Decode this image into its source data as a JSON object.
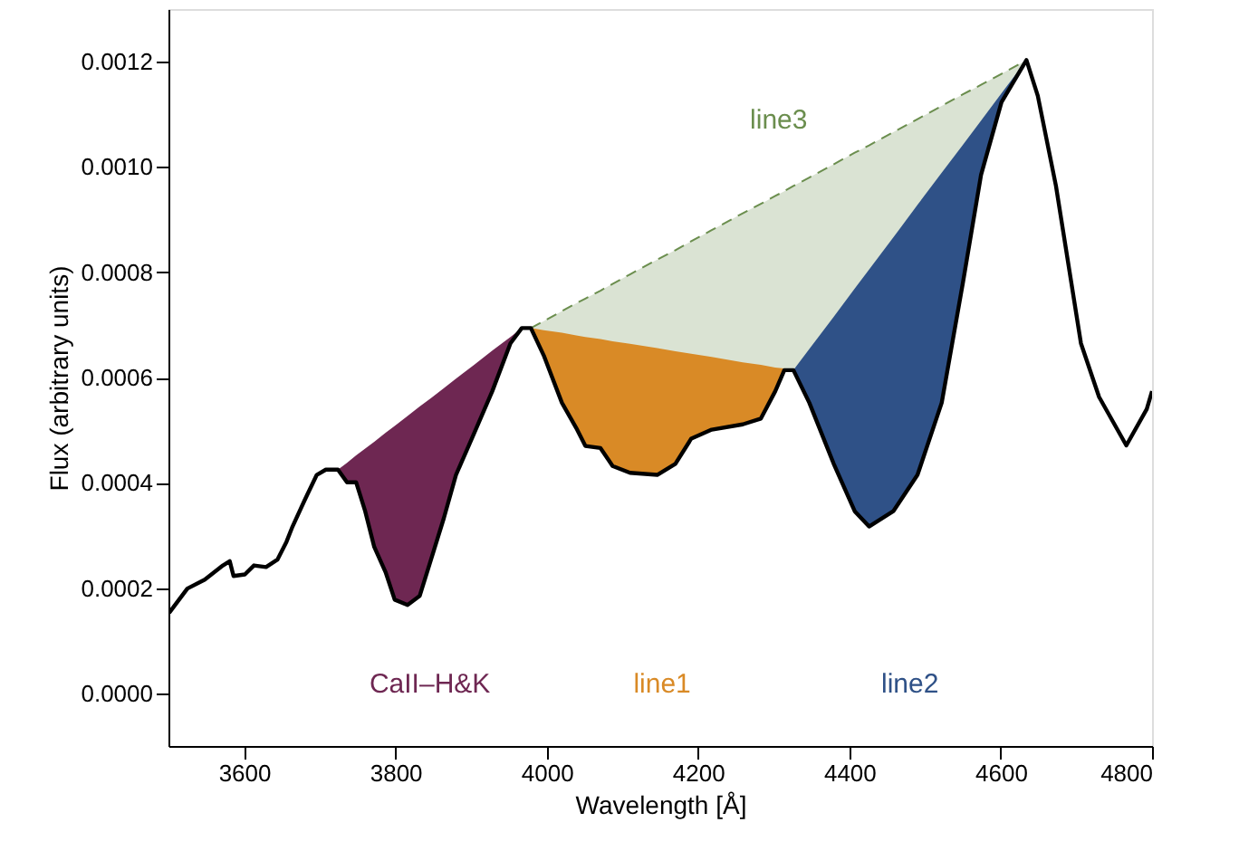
{
  "chart_data": {
    "type": "line",
    "xlabel": "Wavelength [Å]",
    "ylabel": "Flux (arbitrary units)",
    "xlim": [
      3500,
      4800
    ],
    "xticks": [
      {
        "value": 3600,
        "label": "3600"
      },
      {
        "value": 3800,
        "label": "3800"
      },
      {
        "value": 4000,
        "label": "4000"
      },
      {
        "value": 4200,
        "label": "4200"
      },
      {
        "value": 4400,
        "label": "4400"
      },
      {
        "value": 4600,
        "label": "4600"
      },
      {
        "value": 4800,
        "label": "4800"
      }
    ],
    "ylim": [
      -0.0001,
      0.0013
    ],
    "yticks": [
      {
        "value": 0,
        "label": "0.0000"
      },
      {
        "value": 0.0002,
        "label": "0.0002"
      },
      {
        "value": 0.0004,
        "label": "0.0004"
      },
      {
        "value": 0.0006,
        "label": "0.0006"
      },
      {
        "value": 0.0008,
        "label": "0.0008"
      },
      {
        "value": 0.001,
        "label": "0.0010"
      },
      {
        "value": 0.0012,
        "label": "0.0012"
      }
    ],
    "grid": false,
    "series": [
      {
        "type": "area",
        "name": "line3",
        "color": "#6b8e4e",
        "line_style": "dashed",
        "x": [
          3979,
          3996,
          4020,
          4039,
          4051,
          4071,
          4087,
          4110,
          4146,
          4170,
          4191,
          4218,
          4259,
          4283,
          4302,
          4314,
          4326,
          4347,
          4379,
          4407,
          4426,
          4458,
          4490,
          4522,
          4550,
          4574,
          4601,
          4634
        ],
        "values": [
          0.000694,
          0.000707,
          0.000726,
          0.000741,
          0.00075,
          0.000765,
          0.000778,
          0.000796,
          0.000824,
          0.000842,
          0.000859,
          0.00088,
          0.000912,
          0.00093,
          0.000945,
          0.000954,
          0.000964,
          0.00098,
          0.001005,
          0.001027,
          0.001041,
          0.001066,
          0.001091,
          0.001116,
          0.001138,
          0.001156,
          0.001177,
          0.001203
        ]
      },
      {
        "type": "area",
        "name": "CaII–H&K",
        "color": "#6e2752",
        "x": [
          3724,
          3736,
          3748,
          3760,
          3772,
          3787,
          3799,
          3816,
          3832,
          3847,
          3864,
          3880,
          3904,
          3928,
          3952,
          3967
        ],
        "values": [
          0.000425,
          0.000438,
          0.000452,
          0.000465,
          0.000478,
          0.000495,
          0.000508,
          0.000527,
          0.000545,
          0.000561,
          0.00058,
          0.000598,
          0.000624,
          0.000651,
          0.000677,
          0.000694
        ]
      },
      {
        "type": "area",
        "name": "line1",
        "color": "#d98a26",
        "x": [
          3979,
          3996,
          4020,
          4039,
          4051,
          4071,
          4087,
          4110,
          4146,
          4170,
          4191,
          4218,
          4259,
          4283,
          4302,
          4314,
          4326
        ],
        "values": [
          0.000694,
          0.00069,
          0.000685,
          0.00068,
          0.000677,
          0.000673,
          0.000669,
          0.000664,
          0.000656,
          0.00065,
          0.000645,
          0.000639,
          0.000629,
          0.000624,
          0.000619,
          0.000617,
          0.000614
        ]
      },
      {
        "type": "area",
        "name": "line2",
        "color": "#2f5187",
        "x": [
          4326,
          4347,
          4379,
          4407,
          4426,
          4458,
          4490,
          4522,
          4550,
          4574,
          4601,
          4634
        ],
        "values": [
          0.000614,
          0.000654,
          0.000715,
          0.000769,
          0.000805,
          0.000866,
          0.000928,
          0.000989,
          0.001042,
          0.001088,
          0.00114,
          0.001203
        ]
      },
      {
        "color": "#000000",
        "x": [
          3501,
          3525,
          3548,
          3572,
          3581,
          3586,
          3601,
          3613,
          3629,
          3644,
          3656,
          3664,
          3680,
          3696,
          3708,
          3724,
          3736,
          3748,
          3760,
          3772,
          3787,
          3799,
          3816,
          3832,
          3847,
          3864,
          3880,
          3904,
          3928,
          3952,
          3967,
          3979,
          3996,
          4020,
          4039,
          4051,
          4071,
          4087,
          4110,
          4146,
          4170,
          4191,
          4218,
          4259,
          4283,
          4302,
          4314,
          4326,
          4347,
          4379,
          4407,
          4426,
          4458,
          4490,
          4522,
          4550,
          4574,
          4601,
          4634,
          4649,
          4673,
          4706,
          4730,
          4766,
          4793,
          4800
        ],
        "values": [
          0.000153,
          0.000199,
          0.000216,
          0.000243,
          0.000251,
          0.000223,
          0.000226,
          0.000243,
          0.00024,
          0.000254,
          0.000288,
          0.000317,
          0.000367,
          0.000415,
          0.000425,
          0.000425,
          0.000401,
          0.000401,
          0.000346,
          0.000278,
          0.00023,
          0.000178,
          0.000168,
          0.000185,
          0.000254,
          0.000333,
          0.000415,
          0.000494,
          0.000574,
          0.000665,
          0.000694,
          0.000694,
          0.000642,
          0.000552,
          0.000504,
          0.00047,
          0.000466,
          0.000432,
          0.000419,
          0.000415,
          0.000436,
          0.000484,
          0.000501,
          0.000511,
          0.000522,
          0.000574,
          0.000614,
          0.000614,
          0.000552,
          0.000437,
          0.000346,
          0.000317,
          0.000346,
          0.000415,
          0.000552,
          0.00078,
          0.000985,
          0.001123,
          0.001203,
          0.001135,
          0.000964,
          0.000665,
          0.000563,
          0.000471,
          0.00054,
          0.000574
        ]
      }
    ]
  }
}
